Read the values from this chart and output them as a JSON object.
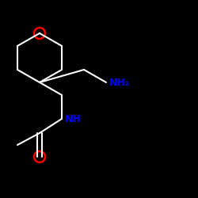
{
  "background_color": "#000000",
  "line_color": "#ffffff",
  "atom_colors": {
    "O": "#ff0000",
    "N": "#0000ff"
  },
  "figsize": [
    2.5,
    2.5
  ],
  "dpi": 100
}
